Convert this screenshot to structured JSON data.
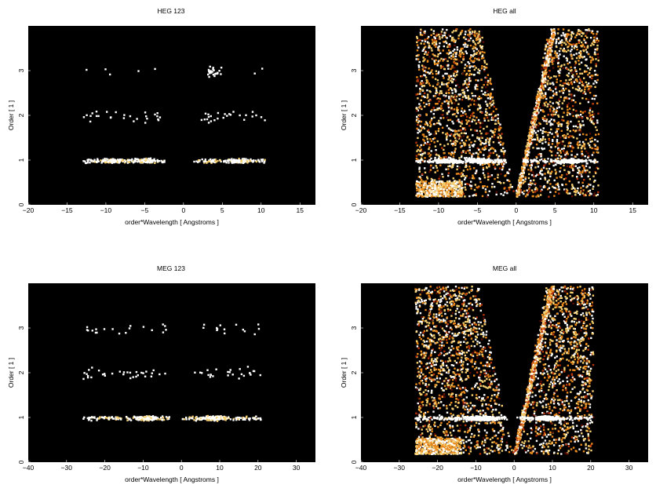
{
  "figure": {
    "background": "#ffffff",
    "plot_background": "#000000",
    "colormap": [
      "#000000",
      "#5a0a00",
      "#b8340a",
      "#ea8a1c",
      "#f6d070",
      "#ffffff"
    ]
  },
  "chart_data": [
    {
      "type": "heatmap",
      "title": "HEG 123",
      "xlabel": "order*Wavelength [ Angstroms ]",
      "ylabel": "Order [ 1 ]",
      "xlim": [
        -20,
        17
      ],
      "ylim": [
        0,
        4
      ],
      "xticks": [
        -20,
        -15,
        -10,
        -5,
        0,
        5,
        10,
        15
      ],
      "yticks": [
        0,
        1,
        2,
        3
      ],
      "mode": "orders",
      "bands": [
        {
          "order": 1,
          "x_range": [
            -13,
            10.5
          ],
          "gap": [
            -2.5,
            1
          ],
          "density": "high",
          "peaks": [
            -9,
            -5,
            7
          ]
        },
        {
          "order": 2,
          "x_range": [
            -13,
            10.5
          ],
          "gap": [
            -3,
            2
          ],
          "density": "low",
          "peaks": []
        },
        {
          "order": 3,
          "x_range": [
            -13,
            10.5
          ],
          "gap": [
            -3,
            3
          ],
          "density": "very-low",
          "peaks": [
            3.5
          ]
        }
      ]
    },
    {
      "type": "heatmap",
      "title": "HEG all",
      "xlabel": "order*Wavelength [ Angstroms ]",
      "ylabel": "Order [ 1 ]",
      "xlim": [
        -20,
        17
      ],
      "ylim": [
        0,
        4
      ],
      "xticks": [
        -20,
        -15,
        -10,
        -5,
        0,
        5,
        10,
        15
      ],
      "yticks": [
        0,
        1,
        2,
        3
      ],
      "mode": "all",
      "wedge": {
        "x_min": -13,
        "x_max": 10.5,
        "y_min": 0.2,
        "y_max": 3.95,
        "vertex": 0
      },
      "bands": [
        {
          "order": 1,
          "x_range": [
            -13,
            10.5
          ],
          "gap": [
            -1.5,
            0.5
          ],
          "density": "high",
          "peaks": [
            -9,
            -5,
            7
          ]
        }
      ]
    },
    {
      "type": "heatmap",
      "title": "MEG 123",
      "xlabel": "order*Wavelength [ Angstroms ]",
      "ylabel": "Order [ 1 ]",
      "xlim": [
        -40,
        35
      ],
      "ylim": [
        0,
        4
      ],
      "xticks": [
        -40,
        -30,
        -20,
        -10,
        0,
        10,
        20,
        30
      ],
      "yticks": [
        0,
        1,
        2,
        3
      ],
      "mode": "orders",
      "bands": [
        {
          "order": 1,
          "x_range": [
            -26,
            20.5
          ],
          "gap": [
            -3,
            0
          ],
          "density": "high",
          "peaks": [
            -9,
            8
          ]
        },
        {
          "order": 2,
          "x_range": [
            -26,
            20.5
          ],
          "gap": [
            -3,
            3
          ],
          "density": "low",
          "peaks": []
        },
        {
          "order": 3,
          "x_range": [
            -26,
            20.5
          ],
          "gap": [
            -3,
            3
          ],
          "density": "very-low",
          "peaks": []
        }
      ]
    },
    {
      "type": "heatmap",
      "title": "MEG all",
      "xlabel": "order*Wavelength [ Angstroms ]",
      "ylabel": "Order [ 1 ]",
      "xlim": [
        -40,
        35
      ],
      "ylim": [
        0,
        4
      ],
      "xticks": [
        -40,
        -30,
        -20,
        -10,
        0,
        10,
        20,
        30
      ],
      "yticks": [
        0,
        1,
        2,
        3
      ],
      "mode": "all",
      "wedge": {
        "x_min": -26,
        "x_max": 20.5,
        "y_min": 0.2,
        "y_max": 3.95,
        "vertex": 0
      },
      "bands": [
        {
          "order": 1,
          "x_range": [
            -26,
            20.5
          ],
          "gap": [
            -2,
            0.5
          ],
          "density": "high",
          "peaks": [
            -9,
            8
          ]
        }
      ]
    }
  ]
}
